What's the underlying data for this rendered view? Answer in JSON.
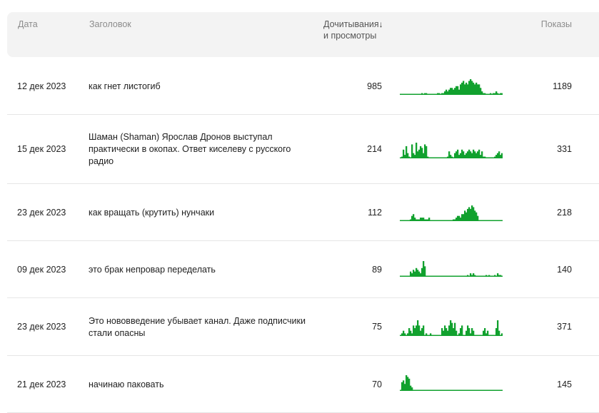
{
  "header": {
    "date": "Дата",
    "title": "Заголовок",
    "reads_line1": "Дочитывания",
    "reads_line2": "и просмотры",
    "sort_arrow": "↓",
    "shows": "Показы"
  },
  "colors": {
    "spark": "#11a12e",
    "header_bg": "#f3f3f3"
  },
  "rows": [
    {
      "date": "12 дек 2023",
      "title": "как гнет листогиб",
      "reads": "985",
      "shows": "1189",
      "spark": [
        0,
        0,
        0,
        0,
        0,
        0,
        0,
        0,
        0,
        0,
        0,
        0,
        0,
        0,
        0,
        1,
        0,
        1,
        1,
        0,
        0,
        0,
        0,
        0,
        0,
        0,
        1,
        1,
        0,
        1,
        1,
        2,
        3,
        2,
        3,
        4,
        4,
        3,
        4,
        5,
        5,
        3,
        6,
        7,
        8,
        6,
        7,
        6,
        8,
        9,
        8,
        7,
        6,
        7,
        6,
        6,
        4,
        2,
        1,
        1,
        0,
        0,
        0,
        1,
        0,
        1,
        1,
        2,
        1,
        0,
        1,
        1
      ]
    },
    {
      "date": "15 дек 2023",
      "title": "Шаман (Shaman) Ярослав Дронов выступал практически в окопах. Ответ киселеву с русского радио",
      "reads": "214",
      "shows": "331",
      "spark": [
        0,
        1,
        5,
        2,
        7,
        3,
        1,
        0,
        8,
        3,
        2,
        9,
        4,
        5,
        7,
        6,
        3,
        8,
        7,
        1,
        0,
        0,
        0,
        0,
        0,
        0,
        0,
        0,
        0,
        0,
        0,
        0,
        0,
        1,
        4,
        2,
        1,
        0,
        3,
        4,
        5,
        2,
        3,
        5,
        4,
        2,
        3,
        4,
        5,
        4,
        3,
        5,
        4,
        3,
        4,
        5,
        2,
        4,
        1,
        1,
        0,
        0,
        0,
        0,
        0,
        0,
        1,
        2,
        3,
        4,
        2,
        3
      ]
    },
    {
      "date": "23 дек 2023",
      "title": "как вращать (крутить) нунчаки",
      "reads": "112",
      "shows": "218",
      "spark": [
        0,
        0,
        0,
        0,
        0,
        0,
        0,
        1,
        3,
        4,
        2,
        1,
        1,
        1,
        2,
        2,
        2,
        1,
        1,
        1,
        2,
        0,
        0,
        0,
        0,
        0,
        0,
        0,
        0,
        0,
        0,
        0,
        0,
        0,
        0,
        0,
        0,
        1,
        1,
        2,
        3,
        3,
        2,
        4,
        4,
        6,
        5,
        7,
        8,
        7,
        9,
        8,
        6,
        5,
        3,
        0,
        0,
        0,
        0,
        0,
        0,
        0,
        0,
        0,
        0,
        0,
        0,
        0,
        0,
        0,
        0,
        0
      ]
    },
    {
      "date": "09 дек 2023",
      "title": "это брак непровар переделать",
      "reads": "89",
      "shows": "140",
      "spark": [
        0,
        0,
        0,
        0,
        0,
        0,
        0,
        3,
        2,
        4,
        3,
        5,
        4,
        3,
        2,
        5,
        9,
        6,
        0,
        0,
        0,
        0,
        0,
        0,
        0,
        0,
        0,
        0,
        0,
        0,
        0,
        0,
        0,
        0,
        0,
        0,
        0,
        0,
        0,
        0,
        0,
        0,
        0,
        0,
        0,
        0,
        0,
        1,
        0,
        2,
        1,
        2,
        1,
        0,
        0,
        0,
        0,
        0,
        0,
        0,
        1,
        0,
        1,
        0,
        0,
        0,
        1,
        0,
        2,
        1,
        1,
        0
      ]
    },
    {
      "date": "23 дек 2023",
      "title": "Это нововведение убывает канал. Даже подписчики стали опасны",
      "reads": "75",
      "shows": "371",
      "spark": [
        0,
        1,
        2,
        1,
        0,
        1,
        3,
        2,
        1,
        4,
        3,
        4,
        6,
        4,
        2,
        3,
        4,
        0,
        1,
        0,
        0,
        1,
        0,
        0,
        0,
        0,
        0,
        0,
        0,
        3,
        2,
        4,
        3,
        2,
        4,
        6,
        5,
        3,
        5,
        2,
        0,
        1,
        3,
        4,
        0,
        0,
        2,
        4,
        3,
        1,
        3,
        2,
        0,
        0,
        0,
        0,
        0,
        0,
        2,
        3,
        1,
        2,
        0,
        0,
        0,
        0,
        0,
        3,
        6,
        2,
        0,
        1
      ]
    },
    {
      "date": "21 дек 2023",
      "title": "начинаю паковать",
      "reads": "70",
      "shows": "145",
      "spark": [
        0,
        5,
        6,
        4,
        9,
        8,
        7,
        3,
        2,
        0,
        0,
        0,
        0,
        0,
        0,
        0,
        0,
        0,
        0,
        0,
        0,
        0,
        0,
        0,
        0,
        0,
        0,
        0,
        0,
        0,
        0,
        0,
        0,
        0,
        0,
        0,
        0,
        0,
        0,
        0,
        0,
        0,
        0,
        0,
        0,
        0,
        0,
        0,
        0,
        0,
        0,
        0,
        0,
        0,
        0,
        0,
        0,
        0,
        0,
        0,
        0,
        0,
        0,
        0,
        0,
        0,
        0,
        0,
        0,
        0,
        0,
        0
      ]
    }
  ]
}
